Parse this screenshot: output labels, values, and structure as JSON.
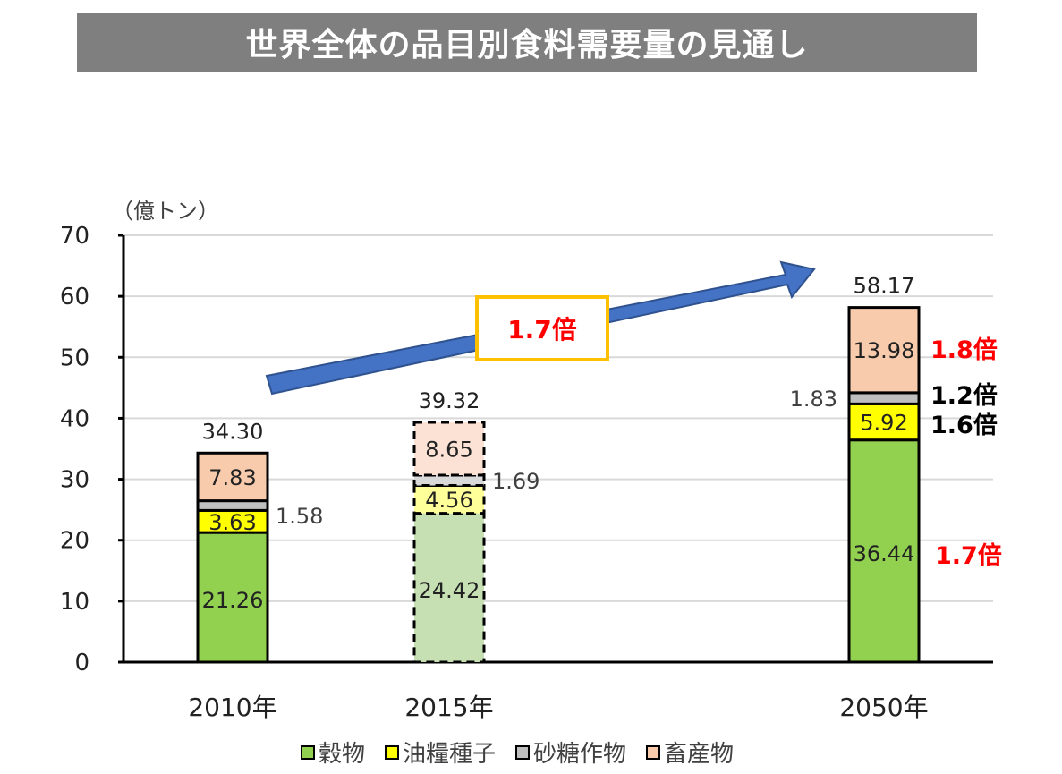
{
  "title": "世界全体の品目別食料需要量の見通し",
  "chart_data": {
    "type": "bar",
    "stacked": true,
    "unit_label": "（億トン）",
    "ylim": [
      0,
      70
    ],
    "yticks": [
      0,
      10,
      20,
      30,
      40,
      50,
      60,
      70
    ],
    "grid": true,
    "legend_position": "bottom",
    "categories": [
      "2010年",
      "2015年",
      "2050年"
    ],
    "series": [
      {
        "name": "穀物",
        "color": "#92d050",
        "values": [
          21.26,
          24.42,
          36.44
        ]
      },
      {
        "name": "油糧種子",
        "color": "#ffff00",
        "values": [
          3.63,
          4.56,
          5.92
        ]
      },
      {
        "name": "砂糖作物",
        "color": "#bfbfbf",
        "values": [
          1.58,
          1.69,
          1.83
        ]
      },
      {
        "name": "畜産物",
        "color": "#f8cbad",
        "values": [
          7.83,
          8.65,
          13.98
        ]
      }
    ],
    "totals": [
      "34.30",
      "39.32",
      "58.17"
    ],
    "estimated_category": "2015年",
    "labels": {
      "2010年": [
        "21.26",
        "3.63",
        "1.58",
        "7.83"
      ],
      "2015年": [
        "24.42",
        "4.56",
        "1.69",
        "8.65"
      ],
      "2050年": [
        "36.44",
        "5.92",
        "1.83",
        "13.98"
      ]
    },
    "ratios": [
      {
        "text": "1.7倍",
        "series": "穀物",
        "color": "#ff0000"
      },
      {
        "text": "1.6倍",
        "series": "油糧種子",
        "color": "#000000"
      },
      {
        "text": "1.2倍",
        "series": "砂糖作物",
        "color": "#000000"
      },
      {
        "text": "1.8倍",
        "series": "畜産物",
        "color": "#ff0000"
      }
    ],
    "growth_callout": {
      "text": "1.7倍",
      "text_color": "#ff0000",
      "border_color": "#ffc000",
      "arrow_color": "#4472c4"
    }
  }
}
